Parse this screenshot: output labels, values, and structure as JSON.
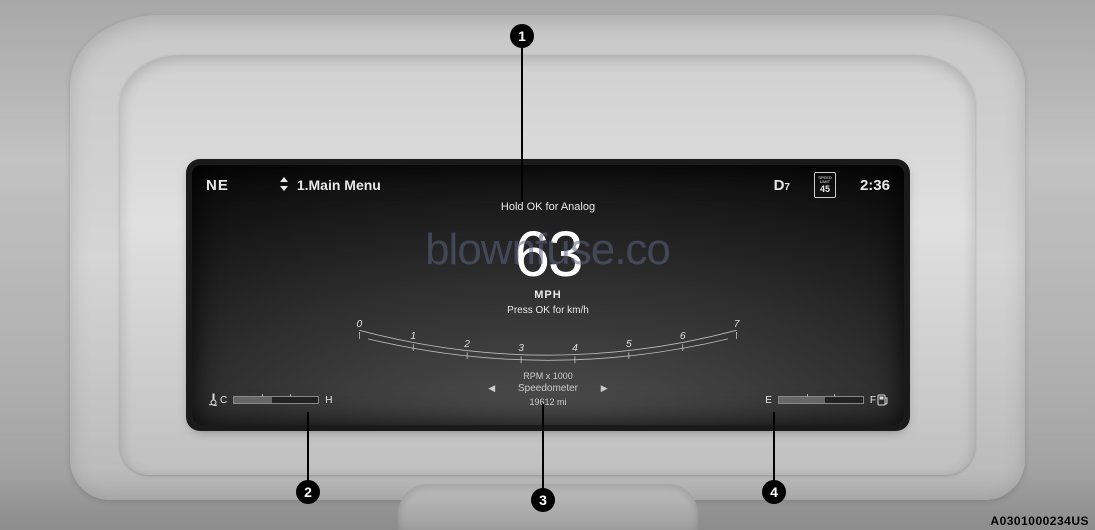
{
  "callouts": {
    "1": "1",
    "2": "2",
    "3": "3",
    "4": "4"
  },
  "topbar": {
    "compass": "NE",
    "menu_label": "1.Main Menu",
    "gear_letter": "D",
    "gear_num": "7",
    "speed_limit_caption": "SPEED LIMIT",
    "speed_limit_value": "45",
    "clock": "2:36"
  },
  "hints": {
    "hold": "Hold  OK for Analog",
    "press": "Press OK for km/h"
  },
  "speed": {
    "value": "63",
    "unit": "MPH"
  },
  "tach": {
    "labels": [
      "0",
      "1",
      "2",
      "3",
      "4",
      "5",
      "6",
      "7"
    ],
    "caption": "RPM x 1000"
  },
  "submenu": {
    "label": "Speedometer"
  },
  "odometer": "19612 mi",
  "gauges": {
    "temp": {
      "low": "C",
      "high": "H",
      "fill_pct": 45
    },
    "fuel": {
      "low": "E",
      "high": "F",
      "fill_pct": 55
    }
  },
  "watermark": "blownfuse.co",
  "image_id": "A0301000234US"
}
